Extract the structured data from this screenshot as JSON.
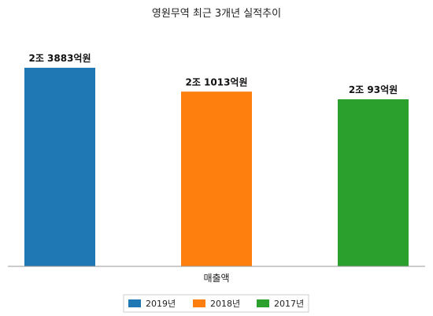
{
  "chart_data": {
    "type": "bar",
    "title": "영원무역 최근 3개년 실적추이",
    "xlabel": "매출액",
    "ylabel": "",
    "categories": [
      "2019년",
      "2018년",
      "2017년"
    ],
    "values": [
      23883,
      21013,
      20093
    ],
    "value_unit": "억원",
    "data_labels": [
      "2조 3883억원",
      "2조 1013억원",
      "2조 93억원"
    ],
    "colors": [
      "#1f77b4",
      "#ff7f0e",
      "#2ca02c"
    ],
    "ylim": [
      0,
      24500
    ],
    "legend": {
      "placement": "bottom",
      "entries": [
        "2019년",
        "2018년",
        "2017년"
      ]
    },
    "grid": false
  }
}
